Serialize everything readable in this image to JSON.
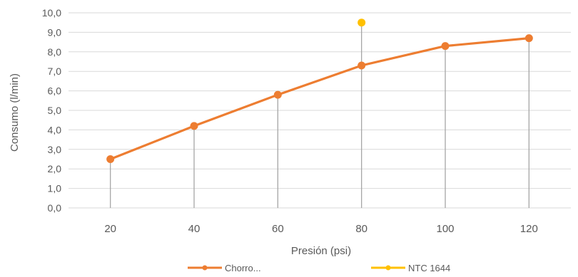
{
  "chart_data": {
    "type": "line",
    "title": "",
    "xlabel": "Presión (psi)",
    "ylabel": "Consumo (l/min)",
    "x": [
      20,
      40,
      60,
      80,
      100,
      120
    ],
    "x_tick_labels": [
      "20",
      "40",
      "60",
      "80",
      "100",
      "120"
    ],
    "ylim": [
      0,
      10
    ],
    "y_ticks": [
      0,
      1,
      2,
      3,
      4,
      5,
      6,
      7,
      8,
      9,
      10
    ],
    "y_tick_labels": [
      "0,0",
      "1,0",
      "2,0",
      "3,0",
      "4,0",
      "5,0",
      "6,0",
      "7,0",
      "8,0",
      "9,0",
      "10,0"
    ],
    "grid": true,
    "drop_lines": true,
    "legend_position": "bottom",
    "series": [
      {
        "name": "Chorro...",
        "color": "#ED7D31",
        "x": [
          20,
          40,
          60,
          80,
          100,
          120
        ],
        "values": [
          2.5,
          4.2,
          5.8,
          7.3,
          8.3,
          8.7
        ]
      },
      {
        "name": "NTC 1644",
        "color": "#FFC000",
        "x": [
          80
        ],
        "values": [
          9.5
        ]
      }
    ]
  }
}
